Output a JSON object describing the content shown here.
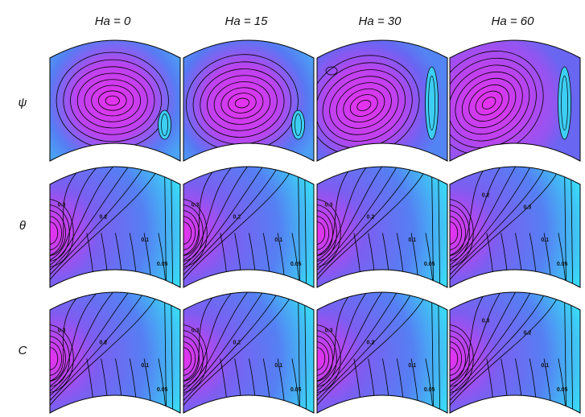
{
  "columns": [
    "Ha = 0",
    "Ha = 15",
    "Ha = 30",
    "Ha = 60"
  ],
  "rows": [
    {
      "symbol": "ψ",
      "field": "streamlines"
    },
    {
      "symbol": "θ",
      "field": "isotherms"
    },
    {
      "symbol": "C",
      "field": "isoconcentrations"
    }
  ],
  "contour_labels": {
    "theta": [
      [
        "0.3",
        "0.2",
        "0.1",
        "0.05"
      ],
      [
        "0.3",
        "0.2",
        "0.1",
        "0.05"
      ],
      [
        "0.3",
        "0.2",
        "0.1",
        "0.05"
      ],
      [
        "0.2",
        "0.3",
        "0.1",
        "0.05"
      ]
    ],
    "conc": [
      [
        "0.3",
        "0.2",
        "0.1",
        "0.05"
      ],
      [
        "0.3",
        "0.2",
        "0.1",
        "0.05"
      ],
      [
        "0.3",
        "0.2",
        "0.1",
        "0.05"
      ],
      [
        "0.3",
        "0.2",
        "0.1",
        "0.05"
      ]
    ]
  },
  "colors": {
    "low": "#35e6f6",
    "mid": "#5b6cf2",
    "high": "#e632ee",
    "line": "#000000"
  }
}
